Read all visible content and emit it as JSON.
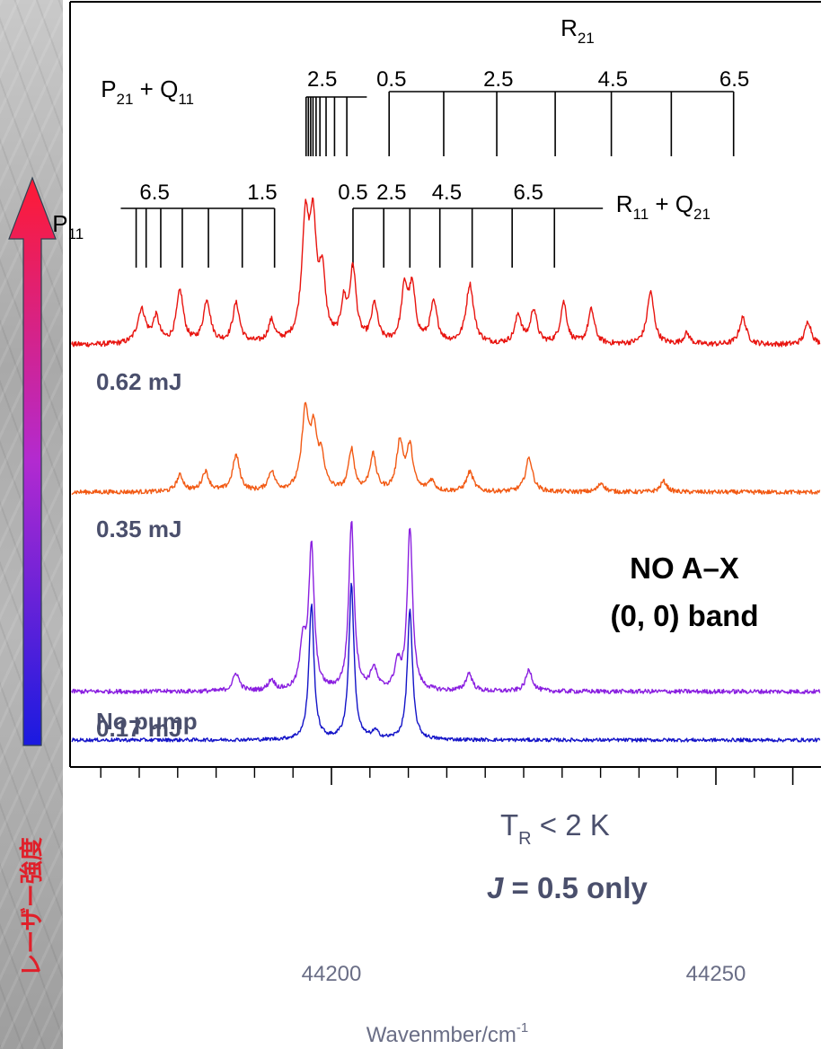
{
  "side_label": "レーザー強度",
  "chart_data": {
    "type": "line",
    "xlabel": "Wavenmber/cm",
    "xlabel_superscript": "-1",
    "xlim": [
      44151,
      44268
    ],
    "x_tick_labels": [
      {
        "value": 44200,
        "label": "44200"
      },
      {
        "value": 44250,
        "label": "44250"
      }
    ],
    "x_major_ticks": [
      44160,
      44200,
      44250,
      44260
    ],
    "x_minor_ticks": [
      44155,
      44165,
      44170,
      44175,
      44180,
      44185,
      44190,
      44195,
      44205,
      44210,
      44215,
      44220,
      44225,
      44230,
      44235,
      44240,
      44245,
      44255,
      44265
    ],
    "annotation_title": "NO A–X",
    "annotation_subtitle": "(0, 0) band",
    "temp_note_T": "T",
    "temp_note_sub": "R",
    "temp_note_rest": " < 2 K",
    "j_note_var": "J",
    "j_note_rest": " = 0.5 only",
    "assignment_ladders": [
      {
        "name_main": "R",
        "name_sub": "21",
        "name_x": 44232,
        "name_y": 40,
        "lines": [
          44207.5,
          44214.6,
          44221.5,
          44229.1,
          44236.4,
          44244.2,
          44252.3
        ],
        "label_jumps": [
          {
            "text": "0.5",
            "x": 44207.8
          },
          {
            "text": "2.5",
            "x": 44221.7
          },
          {
            "text": "4.5",
            "x": 44236.6
          },
          {
            "text": "6.5",
            "x": 44252.4
          }
        ],
        "bar_y": 102,
        "line_bottom": 174,
        "label_y": 96
      },
      {
        "name_main": "P",
        "name_sub": "21",
        "name2_main": "Q",
        "name2_sub": "11",
        "name_x": 44170,
        "name_y": 108,
        "lines": [
          44196.7,
          44197.0,
          44197.3,
          44197.6,
          44198.0,
          44198.5,
          44199.3,
          44200.4,
          44202.0
        ],
        "label_jumps": [
          {
            "text": "2.5",
            "x": 44198.8
          }
        ],
        "bar_y": 108,
        "line_bottom": 174,
        "label_y": 96,
        "bar_end": 44204.6
      },
      {
        "name_main": "P",
        "name_sub": "11",
        "name_x": 44163.7,
        "name_y": 258,
        "lines": [
          44174.6,
          44175.9,
          44177.8,
          44180.6,
          44184.0,
          44188.4,
          44192.6
        ],
        "label_jumps": [
          {
            "text": "6.5",
            "x": 44177
          },
          {
            "text": "1.5",
            "x": 44191
          }
        ],
        "bar_y": 232,
        "line_bottom": 298,
        "label_y": 222,
        "bar_start": 44172.6
      },
      {
        "name_main": "R",
        "name_sub": "11",
        "name2_main": "Q",
        "name2_sub": "21",
        "name_x": 44237,
        "name_y": 236,
        "lines": [
          44202.8,
          44206.8,
          44210.2,
          44214.1,
          44218.3,
          44223.5,
          44229.0
        ],
        "label_jumps": [
          {
            "text": "0.5",
            "x": 44202.8
          },
          {
            "text": "2.5",
            "x": 44207.8
          },
          {
            "text": "4.5",
            "x": 44215
          },
          {
            "text": "6.5",
            "x": 44225.6
          }
        ],
        "bar_y": 232,
        "line_bottom": 298,
        "label_y": 222,
        "bar_end": 44235.3
      }
    ],
    "series": [
      {
        "name": "0.62 mJ",
        "color": "#e8140f",
        "baseline_y": 384,
        "noise": 3,
        "peaks": [
          [
            44175.3,
            38,
            0.65
          ],
          [
            44177.2,
            28,
            0.5
          ],
          [
            44180.3,
            58,
            0.55
          ],
          [
            44183.8,
            48,
            0.55
          ],
          [
            44187.6,
            44,
            0.55
          ],
          [
            44192.2,
            24,
            0.5
          ],
          [
            44196.6,
            125,
            0.55
          ],
          [
            44197.6,
            120,
            0.55
          ],
          [
            44198.8,
            68,
            0.5
          ],
          [
            44201.6,
            40,
            0.45
          ],
          [
            44202.8,
            80,
            0.5
          ],
          [
            44205.6,
            42,
            0.5
          ],
          [
            44209.5,
            58,
            0.5
          ],
          [
            44210.5,
            58,
            0.5
          ],
          [
            44213.3,
            44,
            0.55
          ],
          [
            44218.0,
            66,
            0.6
          ],
          [
            44224.3,
            32,
            0.5
          ],
          [
            44226.3,
            38,
            0.5
          ],
          [
            44230.2,
            46,
            0.5
          ],
          [
            44233.8,
            38,
            0.5
          ],
          [
            44241.5,
            58,
            0.55
          ],
          [
            44246.2,
            12,
            0.5
          ],
          [
            44253.5,
            30,
            0.55
          ],
          [
            44262.0,
            26,
            0.5
          ]
        ]
      },
      {
        "name": "0.35 mJ",
        "color": "#f25a14",
        "baseline_y": 548,
        "noise": 2.5,
        "peaks": [
          [
            44180.3,
            18,
            0.55
          ],
          [
            44183.6,
            22,
            0.55
          ],
          [
            44187.6,
            40,
            0.55
          ],
          [
            44192.2,
            22,
            0.5
          ],
          [
            44196.6,
            86,
            0.55
          ],
          [
            44197.7,
            60,
            0.5
          ],
          [
            44198.7,
            34,
            0.5
          ],
          [
            44202.6,
            46,
            0.45
          ],
          [
            44205.4,
            40,
            0.5
          ],
          [
            44208.9,
            54,
            0.5
          ],
          [
            44210.2,
            48,
            0.5
          ],
          [
            44213.0,
            12,
            0.5
          ],
          [
            44218.0,
            22,
            0.55
          ],
          [
            44225.7,
            38,
            0.55
          ],
          [
            44235.1,
            10,
            0.5
          ],
          [
            44243.2,
            12,
            0.5
          ]
        ]
      },
      {
        "name": "0.17 mJ",
        "color": "#8a1fe0",
        "baseline_y": 770,
        "noise": 2.5,
        "peaks": [
          [
            44187.6,
            20,
            0.5
          ],
          [
            44192.2,
            12,
            0.5
          ],
          [
            44196.3,
            52,
            0.45
          ],
          [
            44197.4,
            158,
            0.42
          ],
          [
            44202.6,
            188,
            0.42
          ],
          [
            44205.5,
            24,
            0.5
          ],
          [
            44208.6,
            28,
            0.45
          ],
          [
            44210.2,
            180,
            0.42
          ],
          [
            44217.9,
            20,
            0.5
          ],
          [
            44225.7,
            24,
            0.5
          ]
        ]
      },
      {
        "name": "No pump",
        "color": "#1414c8",
        "baseline_y": 824,
        "noise": 2,
        "peaks": [
          [
            44197.4,
            150,
            0.4
          ],
          [
            44202.6,
            172,
            0.4
          ],
          [
            44205.7,
            8,
            0.5
          ],
          [
            44210.2,
            144,
            0.4
          ]
        ]
      }
    ],
    "series_label_color": "#4a4f6c"
  }
}
